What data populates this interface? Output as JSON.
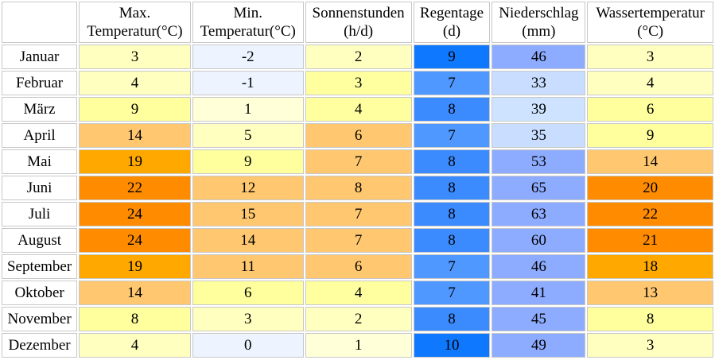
{
  "headers": [
    {
      "line1": "",
      "line2": ""
    },
    {
      "line1": "Max.",
      "line2": "Temperatur(°C)"
    },
    {
      "line1": "Min.",
      "line2": "Temperatur(°C)"
    },
    {
      "line1": "Sonnenstunden",
      "line2": "(h/d)"
    },
    {
      "line1": "Regentage",
      "line2": "(d)"
    },
    {
      "line1": "Niederschlag",
      "line2": "(mm)"
    },
    {
      "line1": "Wassertemperatur",
      "line2": "(°C)"
    }
  ],
  "rows": [
    {
      "month": "Januar",
      "values": [
        "3",
        "-2",
        "2",
        "9",
        "46",
        "3"
      ],
      "colors": [
        "#ffffc0",
        "#eef4ff",
        "#ffffc0",
        "#0e79ff",
        "#8eacff",
        "#ffffc0"
      ]
    },
    {
      "month": "Februar",
      "values": [
        "4",
        "-1",
        "3",
        "7",
        "33",
        "4"
      ],
      "colors": [
        "#ffffc0",
        "#eef4ff",
        "#ffffa0",
        "#4f98ff",
        "#c8ddff",
        "#ffffc0"
      ]
    },
    {
      "month": "März",
      "values": [
        "9",
        "1",
        "4",
        "8",
        "39",
        "6"
      ],
      "colors": [
        "#ffff9e",
        "#ffffd8",
        "#ffffa0",
        "#3b8bff",
        "#cde3ff",
        "#ffff9e"
      ]
    },
    {
      "month": "April",
      "values": [
        "14",
        "5",
        "6",
        "7",
        "35",
        "9"
      ],
      "colors": [
        "#ffc870",
        "#ffffc0",
        "#ffc870",
        "#4f98ff",
        "#c8ddff",
        "#ffff9e"
      ]
    },
    {
      "month": "Mai",
      "values": [
        "19",
        "9",
        "7",
        "8",
        "53",
        "14"
      ],
      "colors": [
        "#ffa800",
        "#ffff9e",
        "#ffc870",
        "#3b8bff",
        "#8eacff",
        "#ffc870"
      ]
    },
    {
      "month": "Juni",
      "values": [
        "22",
        "12",
        "8",
        "8",
        "65",
        "20"
      ],
      "colors": [
        "#ff8c00",
        "#ffc870",
        "#ffc870",
        "#3b8bff",
        "#8eacff",
        "#ff8c00"
      ]
    },
    {
      "month": "Juli",
      "values": [
        "24",
        "15",
        "7",
        "8",
        "63",
        "22"
      ],
      "colors": [
        "#ff8c00",
        "#ffc870",
        "#ffc870",
        "#3b8bff",
        "#8eacff",
        "#ff8c00"
      ]
    },
    {
      "month": "August",
      "values": [
        "24",
        "14",
        "7",
        "8",
        "60",
        "21"
      ],
      "colors": [
        "#ff8c00",
        "#ffc870",
        "#ffc870",
        "#3b8bff",
        "#8eacff",
        "#ff8c00"
      ]
    },
    {
      "month": "September",
      "values": [
        "19",
        "11",
        "6",
        "7",
        "46",
        "18"
      ],
      "colors": [
        "#ffa800",
        "#ffc870",
        "#ffc870",
        "#4f98ff",
        "#8eacff",
        "#ffa800"
      ]
    },
    {
      "month": "Oktober",
      "values": [
        "14",
        "6",
        "4",
        "7",
        "41",
        "13"
      ],
      "colors": [
        "#ffc870",
        "#ffff9e",
        "#ffffa0",
        "#4f98ff",
        "#8eacff",
        "#ffc870"
      ]
    },
    {
      "month": "November",
      "values": [
        "8",
        "3",
        "2",
        "8",
        "45",
        "8"
      ],
      "colors": [
        "#ffff9e",
        "#ffffc0",
        "#ffffc0",
        "#3b8bff",
        "#8eacff",
        "#ffff9e"
      ]
    },
    {
      "month": "Dezember",
      "values": [
        "4",
        "0",
        "1",
        "10",
        "49",
        "3"
      ],
      "colors": [
        "#ffffc0",
        "#eef4ff",
        "#ffffd8",
        "#0e79ff",
        "#8eacff",
        "#ffffc0"
      ]
    }
  ]
}
